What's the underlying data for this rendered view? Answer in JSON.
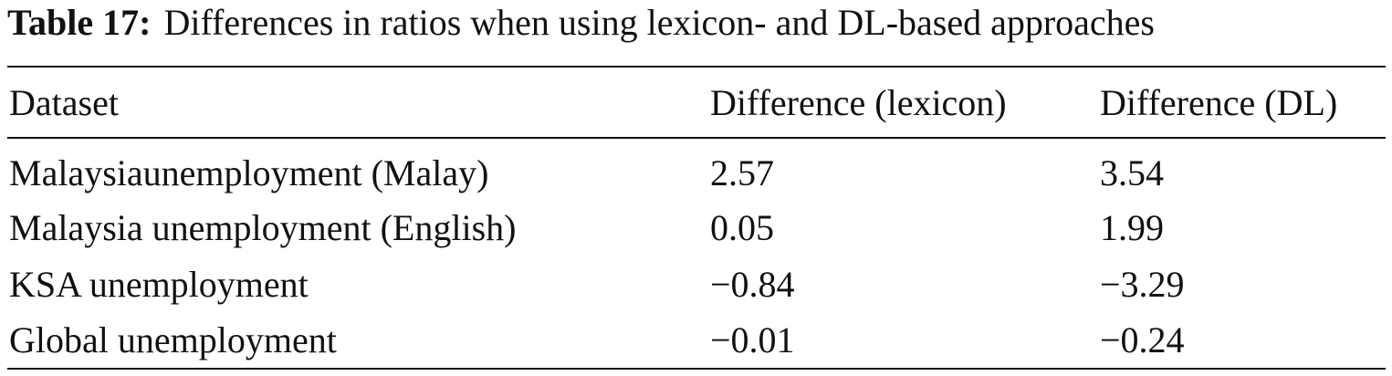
{
  "caption": {
    "label": "Table 17:",
    "text": "Differences in ratios when using lexicon- and DL-based approaches"
  },
  "table": {
    "header": [
      "Dataset",
      "Difference (lexicon)",
      "Difference (DL)"
    ],
    "rows": [
      [
        "Malaysiaunemployment (Malay)",
        "2.57",
        "3.54"
      ],
      [
        "Malaysia unemployment (English)",
        "0.05",
        "1.99"
      ],
      [
        "KSA unemployment",
        "−0.84",
        "−3.29"
      ],
      [
        "Global unemployment",
        "−0.01",
        "−0.24"
      ]
    ]
  }
}
